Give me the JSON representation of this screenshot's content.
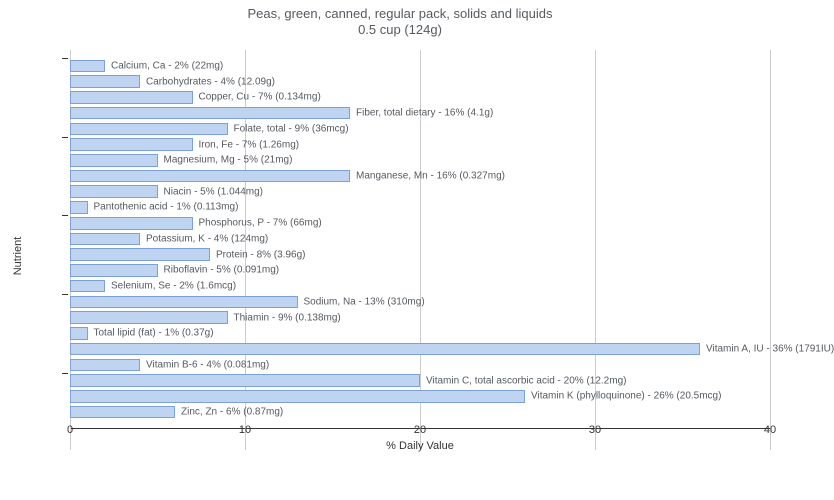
{
  "chart": {
    "type": "bar-horizontal",
    "title_line1": "Peas, green, canned, regular pack, solids and liquids",
    "title_line2": "0.5 cup (124g)",
    "title_fontsize": 13,
    "title_color": "#555a60",
    "x_axis_label": "% Daily Value",
    "y_axis_label": "Nutrient",
    "axis_label_fontsize": 11,
    "bar_label_fontsize": 10,
    "tick_fontsize": 11,
    "xlim_min": 0,
    "xlim_max": 40,
    "x_ticks": [
      0,
      10,
      20,
      30,
      40
    ],
    "bar_fill": "#bed4f0",
    "bar_stroke": "#7da0d6",
    "grid_color": "#cccccc",
    "background": "#ffffff",
    "text_color": "#555a60",
    "bars": [
      {
        "value": 2,
        "label": "Calcium, Ca - 2% (22mg)"
      },
      {
        "value": 4,
        "label": "Carbohydrates - 4% (12.09g)"
      },
      {
        "value": 7,
        "label": "Copper, Cu - 7% (0.134mg)"
      },
      {
        "value": 16,
        "label": "Fiber, total dietary - 16% (4.1g)"
      },
      {
        "value": 9,
        "label": "Folate, total - 9% (36mcg)"
      },
      {
        "value": 7,
        "label": "Iron, Fe - 7% (1.26mg)"
      },
      {
        "value": 5,
        "label": "Magnesium, Mg - 5% (21mg)"
      },
      {
        "value": 16,
        "label": "Manganese, Mn - 16% (0.327mg)"
      },
      {
        "value": 5,
        "label": "Niacin - 5% (1.044mg)"
      },
      {
        "value": 1,
        "label": "Pantothenic acid - 1% (0.113mg)"
      },
      {
        "value": 7,
        "label": "Phosphorus, P - 7% (66mg)"
      },
      {
        "value": 4,
        "label": "Potassium, K - 4% (124mg)"
      },
      {
        "value": 8,
        "label": "Protein - 8% (3.96g)"
      },
      {
        "value": 5,
        "label": "Riboflavin - 5% (0.091mg)"
      },
      {
        "value": 2,
        "label": "Selenium, Se - 2% (1.6mcg)"
      },
      {
        "value": 13,
        "label": "Sodium, Na - 13% (310mg)"
      },
      {
        "value": 9,
        "label": "Thiamin - 9% (0.138mg)"
      },
      {
        "value": 1,
        "label": "Total lipid (fat) - 1% (0.37g)"
      },
      {
        "value": 36,
        "label": "Vitamin A, IU - 36% (1791IU)"
      },
      {
        "value": 4,
        "label": "Vitamin B-6 - 4% (0.081mg)"
      },
      {
        "value": 20,
        "label": "Vitamin C, total ascorbic acid - 20% (12.2mg)"
      },
      {
        "value": 26,
        "label": "Vitamin K (phylloquinone) - 26% (20.5mcg)"
      },
      {
        "value": 6,
        "label": "Zinc, Zn - 6% (0.87mg)"
      }
    ]
  }
}
